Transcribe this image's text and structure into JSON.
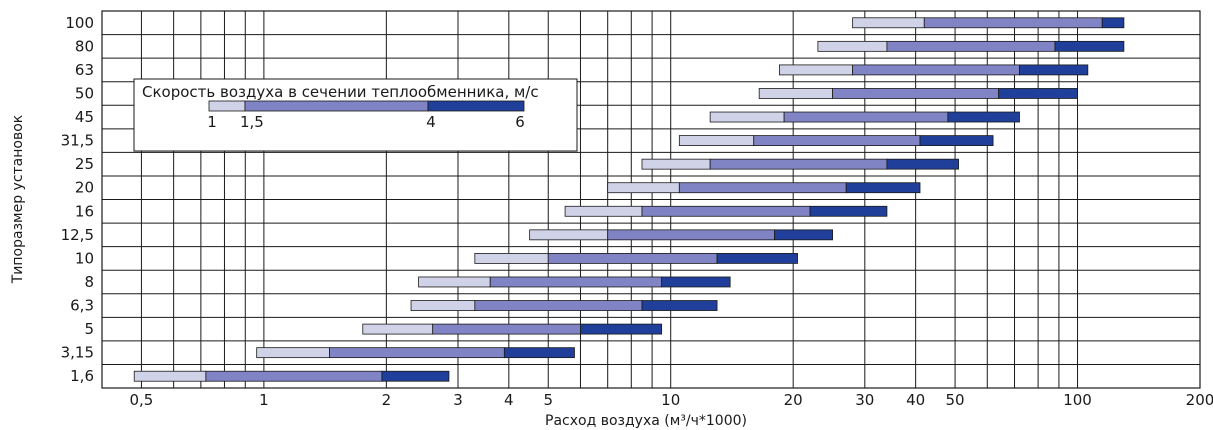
{
  "chart_data": {
    "type": "bar",
    "orientation": "horizontal-range",
    "x_scale": "log",
    "xlim": [
      0.4,
      200
    ],
    "xlabel": "Расход воздуха (м³/ч*1000)",
    "ylabel": "Типоразмер установок",
    "x_ticks": [
      {
        "value": 0.5,
        "label": "0,5"
      },
      {
        "value": 1,
        "label": "1"
      },
      {
        "value": 2,
        "label": "2"
      },
      {
        "value": 3,
        "label": "3"
      },
      {
        "value": 4,
        "label": "4"
      },
      {
        "value": 5,
        "label": "5"
      },
      {
        "value": 10,
        "label": "10"
      },
      {
        "value": 20,
        "label": "20"
      },
      {
        "value": 30,
        "label": "30"
      },
      {
        "value": 40,
        "label": "40"
      },
      {
        "value": 50,
        "label": "50"
      },
      {
        "value": 100,
        "label": "100"
      },
      {
        "value": 200,
        "label": "200"
      }
    ],
    "minor_gridlines": [
      0.6,
      0.7,
      0.8,
      0.9,
      6,
      7,
      8,
      9,
      60,
      70,
      80,
      90
    ],
    "grid": true,
    "legend": {
      "title": "Скорость воздуха в сечении теплообменника, м/с",
      "placement": "upper-left",
      "ticks": [
        "1",
        "1,5",
        "4",
        "6"
      ]
    },
    "colors": {
      "segment_1_to_1_5": "#d0d2e8",
      "segment_1_5_to_4": "#8083c4",
      "segment_4_to_6": "#1f3f9a",
      "grid": "#1a1a1a"
    },
    "categories": [
      "100",
      "80",
      "63",
      "50",
      "45",
      "31,5",
      "25",
      "20",
      "16",
      "12,5",
      "10",
      "8",
      "6,3",
      "5",
      "3,15",
      "1,6"
    ],
    "ranges": [
      [
        28,
        42,
        115,
        130
      ],
      [
        23,
        34,
        88,
        130
      ],
      [
        18.5,
        28,
        72,
        106
      ],
      [
        16.5,
        25,
        64,
        100
      ],
      [
        12.5,
        19,
        48,
        72
      ],
      [
        10.5,
        16,
        41,
        62
      ],
      [
        8.5,
        12.5,
        34,
        51
      ],
      [
        7,
        10.5,
        27,
        41
      ],
      [
        5.5,
        8.5,
        22,
        34
      ],
      [
        4.5,
        7,
        18,
        25
      ],
      [
        3.3,
        5,
        13,
        20.5
      ],
      [
        2.4,
        3.6,
        9.5,
        14
      ],
      [
        2.3,
        3.3,
        8.5,
        13
      ],
      [
        1.75,
        2.6,
        6,
        9.5
      ],
      [
        0.96,
        1.45,
        3.9,
        5.8
      ],
      [
        0.48,
        0.72,
        1.95,
        2.85
      ]
    ]
  }
}
